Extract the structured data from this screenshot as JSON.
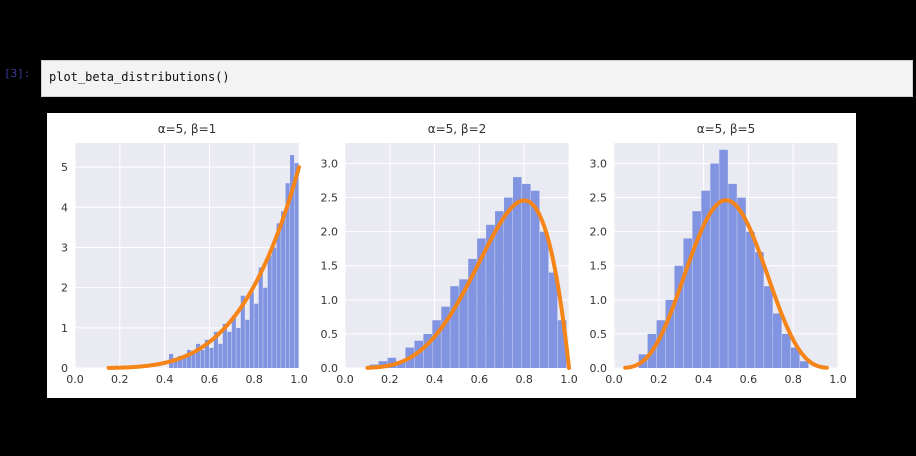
{
  "cell": {
    "prompt": "[3]:",
    "code": "plot_beta_distributions()"
  },
  "colors": {
    "hist": "#7b8fdf",
    "curve": "#f58518",
    "plot_bg": "#eaeaf2",
    "grid": "#ffffff"
  },
  "chart_data": [
    {
      "type": "histogram+line",
      "title": "α=5, β=1",
      "alpha": 5,
      "beta": 1,
      "xlim": [
        0.0,
        1.0
      ],
      "ylim": [
        0,
        5.6
      ],
      "xticks": [
        "0.0",
        "0.2",
        "0.4",
        "0.6",
        "0.8",
        "1.0"
      ],
      "yticks": [
        "0",
        "1",
        "2",
        "3",
        "4",
        "5"
      ],
      "ytick_values": [
        0,
        1,
        2,
        3,
        4,
        5
      ],
      "curve_x_range": [
        0.15,
        1.0
      ],
      "hist_x": [
        0.43,
        0.45,
        0.47,
        0.49,
        0.51,
        0.53,
        0.55,
        0.57,
        0.59,
        0.61,
        0.63,
        0.65,
        0.67,
        0.69,
        0.71,
        0.73,
        0.75,
        0.77,
        0.79,
        0.81,
        0.83,
        0.85,
        0.87,
        0.89,
        0.91,
        0.93,
        0.95,
        0.97,
        0.99
      ],
      "hist_y": [
        0.35,
        0.2,
        0.3,
        0.25,
        0.45,
        0.4,
        0.6,
        0.45,
        0.7,
        0.5,
        0.9,
        0.6,
        1.1,
        0.9,
        1.3,
        1.0,
        1.8,
        1.2,
        1.9,
        1.6,
        2.5,
        2.0,
        2.8,
        3.0,
        3.6,
        3.9,
        4.6,
        5.3,
        5.1
      ]
    },
    {
      "type": "histogram+line",
      "title": "α=5, β=2",
      "alpha": 5,
      "beta": 2,
      "xlim": [
        0.0,
        1.0
      ],
      "ylim": [
        0,
        3.3
      ],
      "xticks": [
        "0.0",
        "0.2",
        "0.4",
        "0.6",
        "0.8",
        "1.0"
      ],
      "yticks": [
        "0.0",
        "0.5",
        "1.0",
        "1.5",
        "2.0",
        "2.5",
        "3.0"
      ],
      "ytick_values": [
        0,
        0.5,
        1.0,
        1.5,
        2.0,
        2.5,
        3.0
      ],
      "curve_x_range": [
        0.1,
        1.0
      ],
      "hist_x": [
        0.13,
        0.17,
        0.21,
        0.25,
        0.29,
        0.33,
        0.37,
        0.41,
        0.45,
        0.49,
        0.53,
        0.57,
        0.61,
        0.65,
        0.69,
        0.73,
        0.77,
        0.81,
        0.85,
        0.89,
        0.93,
        0.97
      ],
      "hist_y": [
        0.05,
        0.1,
        0.15,
        0.1,
        0.3,
        0.4,
        0.5,
        0.7,
        0.9,
        1.2,
        1.3,
        1.6,
        1.9,
        2.1,
        2.3,
        2.5,
        2.8,
        2.7,
        2.6,
        2.0,
        1.4,
        0.7
      ]
    },
    {
      "type": "histogram+line",
      "title": "α=5, β=5",
      "alpha": 5,
      "beta": 5,
      "xlim": [
        0.0,
        1.0
      ],
      "ylim": [
        0,
        3.3
      ],
      "xticks": [
        "0.0",
        "0.2",
        "0.4",
        "0.6",
        "0.8",
        "1.0"
      ],
      "yticks": [
        "0.0",
        "0.5",
        "1.0",
        "1.5",
        "2.0",
        "2.5",
        "3.0"
      ],
      "ytick_values": [
        0,
        0.5,
        1.0,
        1.5,
        2.0,
        2.5,
        3.0
      ],
      "curve_x_range": [
        0.05,
        0.95
      ],
      "hist_x": [
        0.13,
        0.17,
        0.21,
        0.25,
        0.29,
        0.33,
        0.37,
        0.41,
        0.45,
        0.49,
        0.53,
        0.57,
        0.61,
        0.65,
        0.69,
        0.73,
        0.77,
        0.81,
        0.85
      ],
      "hist_y": [
        0.2,
        0.5,
        0.7,
        1.0,
        1.5,
        1.9,
        2.3,
        2.6,
        3.0,
        3.2,
        2.7,
        2.5,
        2.0,
        1.7,
        1.2,
        0.8,
        0.5,
        0.3,
        0.1
      ]
    }
  ]
}
